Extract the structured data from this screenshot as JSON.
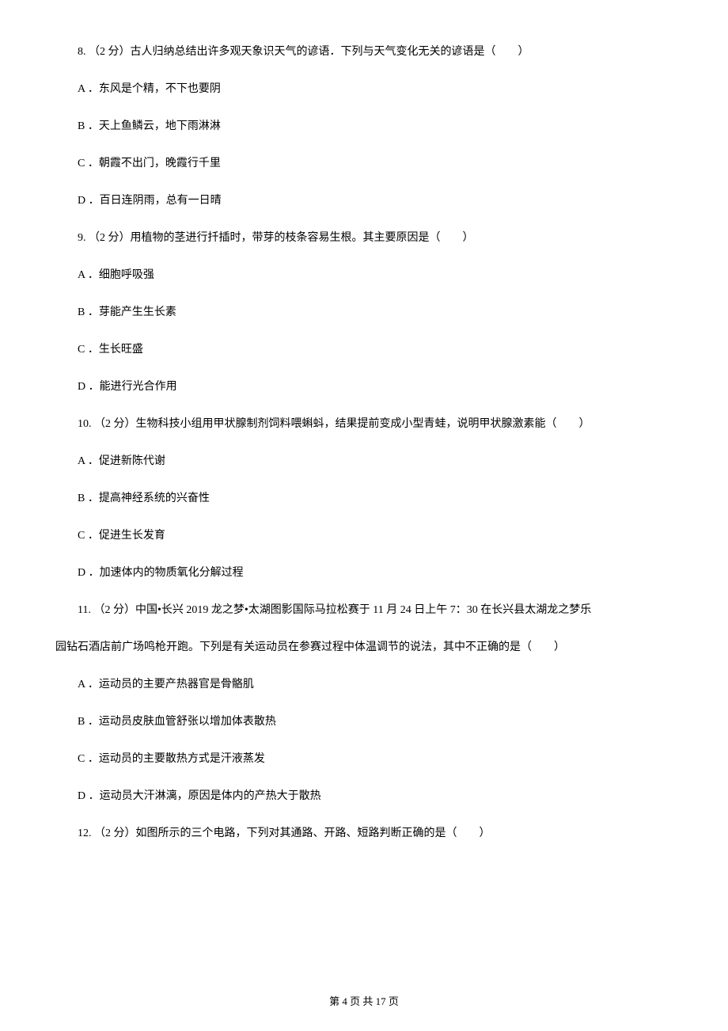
{
  "page_footer": "第 4 页 共 17 页",
  "questions": [
    {
      "number": "8. ",
      "points": "（2 分）",
      "stem": "古人归纳总结出许多观天象识天气的谚语．下列与天气变化无关的谚语是（　　）",
      "options": [
        "A ．东风是个精，不下也要阴",
        "B ．天上鱼鳞云，地下雨淋淋",
        "C ．朝霞不出门，晚霞行千里",
        "D ．百日连阴雨，总有一日晴"
      ]
    },
    {
      "number": "9. ",
      "points": "（2 分）",
      "stem": "用植物的茎进行扦插时，带芽的枝条容易生根。其主要原因是（　　）",
      "options": [
        "A ．细胞呼吸强",
        "B ．芽能产生生长素",
        "C ．生长旺盛",
        "D ．能进行光合作用"
      ]
    },
    {
      "number": "10. ",
      "points": "（2 分）",
      "stem": "生物科技小组用甲状腺制剂饲料喂蝌蚪，结果提前变成小型青蛙，说明甲状腺激素能（　　）",
      "options": [
        "A ．促进新陈代谢",
        "B ．提高神经系统的兴奋性",
        "C ．促进生长发育",
        "D ．加速体内的物质氧化分解过程"
      ]
    },
    {
      "number": "11. ",
      "points": "（2 分）",
      "stem_line1": "中国•长兴 2019 龙之梦•太湖图影国际马拉松赛于 11 月 24 日上午 7：30 在长兴县太湖龙之梦乐",
      "stem_line2": "园钻石酒店前广场鸣枪开跑。下列是有关运动员在参赛过程中体温调节的说法，其中不正确的是（　　）",
      "options": [
        "A ．运动员的主要产热器官是骨骼肌",
        "B ．运动员皮肤血管舒张以增加体表散热",
        "C ．运动员的主要散热方式是汗液蒸发",
        "D ．运动员大汗淋漓，原因是体内的产热大于散热"
      ]
    },
    {
      "number": "12. ",
      "points": "（2 分）",
      "stem": "如图所示的三个电路，下列对其通路、开路、短路判断正确的是（　　）"
    }
  ]
}
